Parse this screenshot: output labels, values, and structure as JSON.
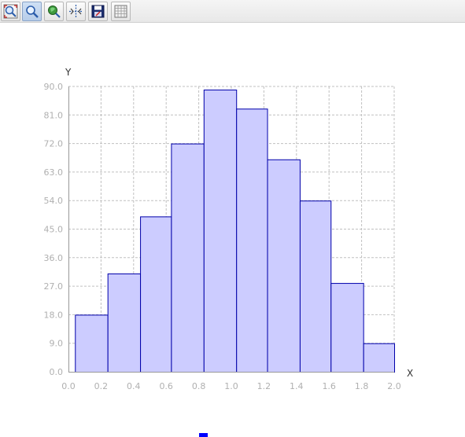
{
  "toolbar": {
    "buttons": [
      {
        "name": "zoom-fit-button",
        "icon": "zoom-fit-icon",
        "active": false
      },
      {
        "name": "zoom-button",
        "icon": "magnifier-icon",
        "active": true
      },
      {
        "name": "pan-button",
        "icon": "pan-icon",
        "active": false
      },
      {
        "name": "crosshair-button",
        "icon": "crosshair-icon",
        "active": false
      },
      {
        "name": "export-button",
        "icon": "save-icon",
        "active": false
      },
      {
        "name": "data-table-button",
        "icon": "table-icon",
        "active": false
      }
    ]
  },
  "chart_data": {
    "type": "bar",
    "title": "",
    "xlabel": "X",
    "ylabel": "Y",
    "xlim": [
      0.0,
      2.0
    ],
    "ylim": [
      0.0,
      90.0
    ],
    "xticks": [
      "0.0",
      "0.2",
      "0.4",
      "0.6",
      "0.8",
      "1.0",
      "1.2",
      "1.4",
      "1.6",
      "1.8",
      "2.0"
    ],
    "yticks": [
      "0.0",
      "9.0",
      "18.0",
      "27.0",
      "36.0",
      "45.0",
      "54.0",
      "63.0",
      "72.0",
      "81.0",
      "90.0"
    ],
    "grid": true,
    "bins": [
      {
        "x0": 0.04,
        "x1": 0.24,
        "value": 18
      },
      {
        "x0": 0.24,
        "x1": 0.44,
        "value": 31
      },
      {
        "x0": 0.44,
        "x1": 0.63,
        "value": 49
      },
      {
        "x0": 0.63,
        "x1": 0.83,
        "value": 72
      },
      {
        "x0": 0.83,
        "x1": 1.03,
        "value": 89
      },
      {
        "x0": 1.03,
        "x1": 1.22,
        "value": 83
      },
      {
        "x0": 1.22,
        "x1": 1.42,
        "value": 67
      },
      {
        "x0": 1.42,
        "x1": 1.61,
        "value": 54
      },
      {
        "x0": 1.61,
        "x1": 1.81,
        "value": 28
      },
      {
        "x0": 1.81,
        "x1": 2.0,
        "value": 9
      }
    ],
    "bar_fill": "#ccccff",
    "bar_stroke": "#0000aa",
    "grid_color": "#c0c0c0",
    "legend": {
      "placement": "bottom",
      "color": "#0000ff"
    }
  }
}
